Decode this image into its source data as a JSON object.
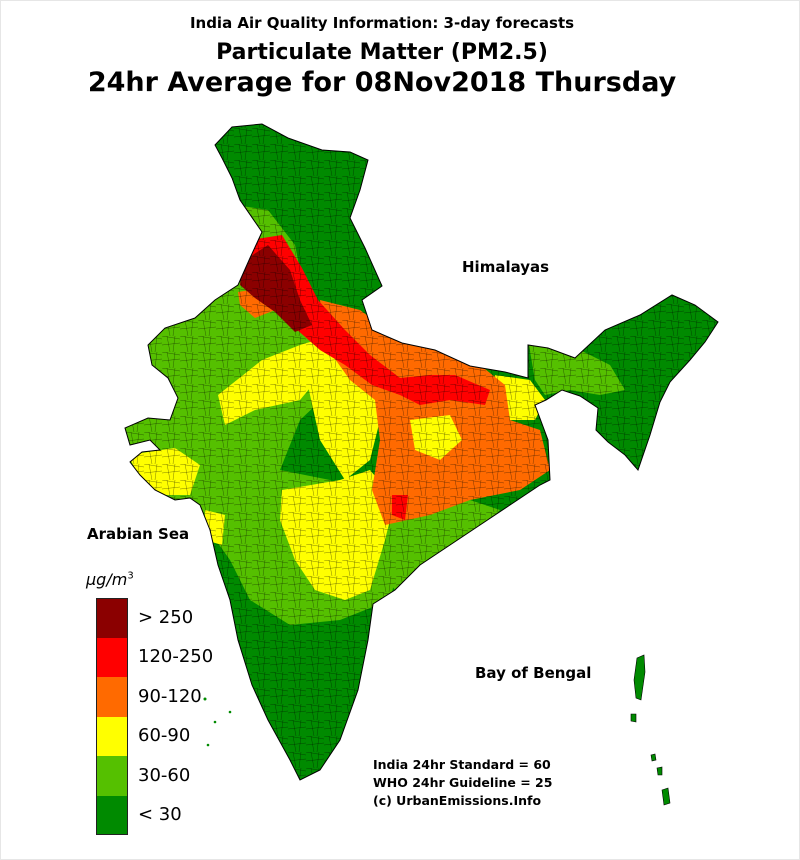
{
  "header": {
    "subtitle": "India Air Quality Information: 3-day forecasts",
    "title": "Particulate Matter (PM2.5)",
    "date_line": "24hr Average for 08Nov2018 Thursday"
  },
  "map_labels": {
    "himalayas": "Himalayas",
    "arabian_sea": "Arabian Sea",
    "bay_of_bengal": "Bay of Bengal"
  },
  "legend": {
    "unit_base": "μg/m",
    "unit_exp": "3",
    "classes": [
      {
        "label": "> 250",
        "color": "#8b0000"
      },
      {
        "label": "120-250",
        "color": "#ff0000"
      },
      {
        "label": "90-120",
        "color": "#ff6a00"
      },
      {
        "label": "60-90",
        "color": "#ffff00"
      },
      {
        "label": "30-60",
        "color": "#55c000"
      },
      {
        "label": "< 30",
        "color": "#008a00"
      }
    ]
  },
  "notes": {
    "india_standard": "India 24hr Standard = 60",
    "who_guideline": "WHO 24hr Guideline = 25",
    "credit": "(c) UrbanEmissions.Info"
  }
}
